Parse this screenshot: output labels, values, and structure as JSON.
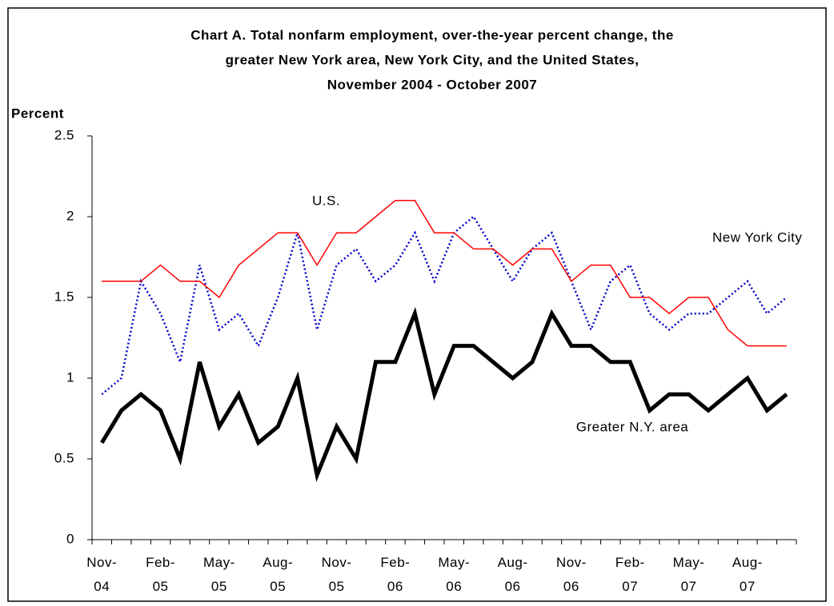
{
  "chart_data": {
    "type": "line",
    "title": [
      "Chart A. Total nonfarm employment, over-the-year percent change, the",
      "greater New York area, New York City, and the United States,",
      "November 2004 - October 2007"
    ],
    "y_label": "Percent",
    "categories": [
      "Nov-04",
      null,
      null,
      "Feb-05",
      null,
      null,
      "May-05",
      null,
      null,
      "Aug-05",
      null,
      null,
      "Nov-05",
      null,
      null,
      "Feb-06",
      null,
      null,
      "May-06",
      null,
      null,
      "Aug-06",
      null,
      null,
      "Nov-06",
      null,
      null,
      "Feb-07",
      null,
      null,
      "May-07",
      null,
      null,
      "Aug-07",
      null,
      null
    ],
    "series": [
      {
        "name": "U.S.",
        "color": "#0000cc",
        "dash": "dotted",
        "width": 2.5,
        "values": [
          0.9,
          1.0,
          1.6,
          1.4,
          1.1,
          1.7,
          1.3,
          1.4,
          1.2,
          1.5,
          1.9,
          1.3,
          1.7,
          1.8,
          1.6,
          1.7,
          1.9,
          1.6,
          1.9,
          2.0,
          1.8,
          1.6,
          1.8,
          1.9,
          1.6,
          1.3,
          1.6,
          1.7,
          1.4,
          1.3,
          1.4,
          1.4,
          1.5,
          1.6,
          1.4,
          1.5
        ]
      },
      {
        "name": "New York City",
        "color": "#ff0000",
        "dash": "solid",
        "width": 1.5,
        "values": [
          1.6,
          1.6,
          1.6,
          1.7,
          1.6,
          1.6,
          1.5,
          1.7,
          1.8,
          1.9,
          1.9,
          1.7,
          1.9,
          1.9,
          2.0,
          2.1,
          2.1,
          1.9,
          1.9,
          1.8,
          1.8,
          1.7,
          1.8,
          1.8,
          1.6,
          1.7,
          1.7,
          1.5,
          1.5,
          1.4,
          1.5,
          1.5,
          1.3,
          1.2,
          1.2,
          1.2
        ]
      },
      {
        "name": "Greater N.Y. area",
        "color": "#000000",
        "dash": "solid",
        "width": 5,
        "values": [
          0.6,
          0.8,
          0.9,
          0.8,
          0.5,
          1.1,
          0.7,
          0.9,
          0.6,
          0.7,
          1.0,
          0.4,
          0.7,
          0.5,
          1.1,
          1.1,
          1.4,
          0.9,
          1.2,
          1.2,
          1.1,
          1.0,
          1.1,
          1.4,
          1.2,
          1.2,
          1.1,
          1.1,
          0.8,
          0.9,
          0.9,
          0.8,
          0.9,
          1.0,
          0.8,
          0.9
        ]
      }
    ],
    "ylim": [
      0,
      2.5
    ],
    "yticks": [
      0,
      0.5,
      1,
      1.5,
      2,
      2.5
    ]
  }
}
